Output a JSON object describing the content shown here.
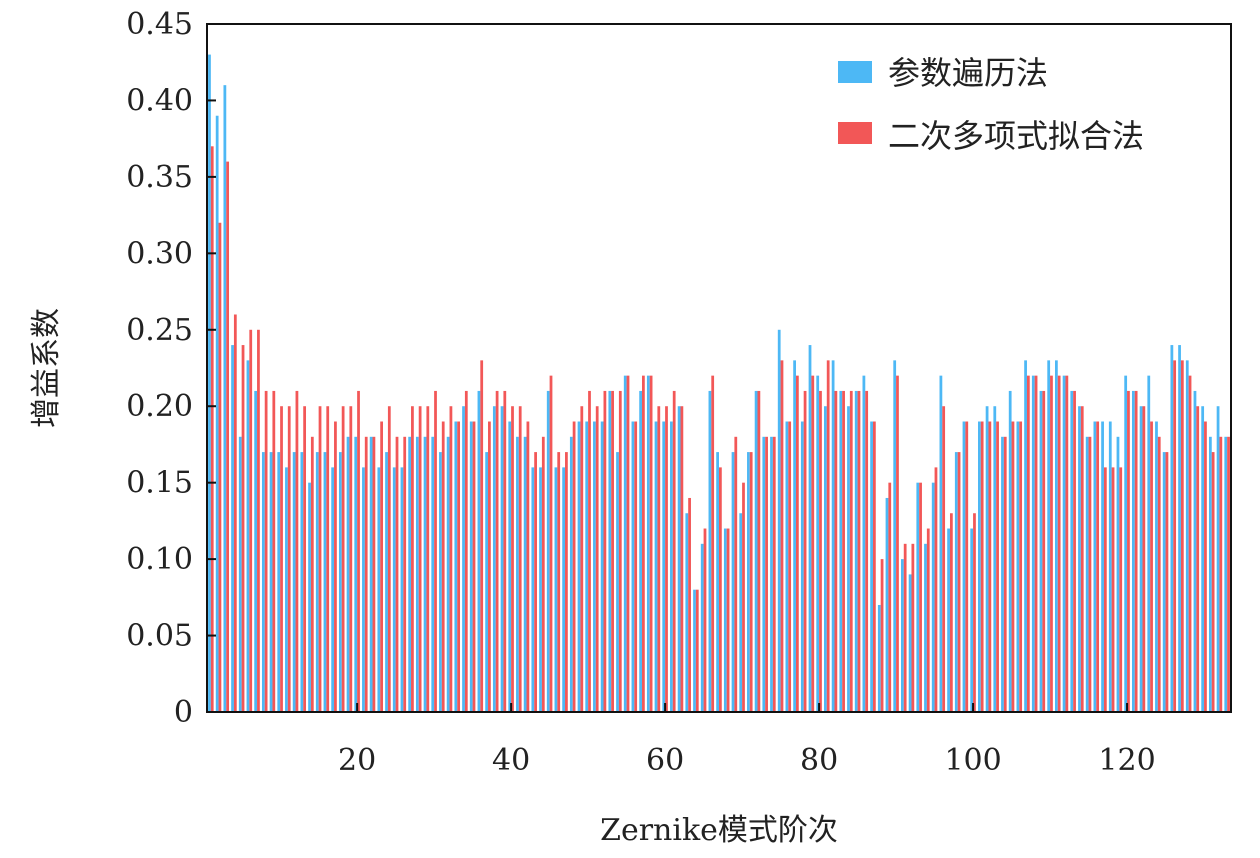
{
  "chart_data": {
    "type": "bar",
    "xlabel": "Zernike模式阶次",
    "ylabel": "增益系数",
    "xlim": [
      0.5,
      133.5
    ],
    "ylim": [
      0,
      0.45
    ],
    "xticks": [
      20,
      40,
      60,
      80,
      100,
      120
    ],
    "xtick_labels": [
      "20",
      "40",
      "60",
      "80",
      "100",
      "120"
    ],
    "yticks": [
      0,
      0.05,
      0.1,
      0.15,
      0.2,
      0.25,
      0.3,
      0.35,
      0.4,
      0.45
    ],
    "ytick_labels": [
      "0",
      "0.05",
      "0.10",
      "0.15",
      "0.20",
      "0.25",
      "0.30",
      "0.35",
      "0.40",
      "0.45"
    ],
    "grid": false,
    "legend_position": "top-right",
    "x": [
      1,
      2,
      3,
      4,
      5,
      6,
      7,
      8,
      9,
      10,
      11,
      12,
      13,
      14,
      15,
      16,
      17,
      18,
      19,
      20,
      21,
      22,
      23,
      24,
      25,
      26,
      27,
      28,
      29,
      30,
      31,
      32,
      33,
      34,
      35,
      36,
      37,
      38,
      39,
      40,
      41,
      42,
      43,
      44,
      45,
      46,
      47,
      48,
      49,
      50,
      51,
      52,
      53,
      54,
      55,
      56,
      57,
      58,
      59,
      60,
      61,
      62,
      63,
      64,
      65,
      66,
      67,
      68,
      69,
      70,
      71,
      72,
      73,
      74,
      75,
      76,
      77,
      78,
      79,
      80,
      81,
      82,
      83,
      84,
      85,
      86,
      87,
      88,
      89,
      90,
      91,
      92,
      93,
      94,
      95,
      96,
      97,
      98,
      99,
      100,
      101,
      102,
      103,
      104,
      105,
      106,
      107,
      108,
      109,
      110,
      111,
      112,
      113,
      114,
      115,
      116,
      117,
      118,
      119,
      120,
      121,
      122,
      123,
      124,
      125,
      126,
      127,
      128,
      129,
      130,
      131,
      132,
      133
    ],
    "series": [
      {
        "name": "参数遍历法",
        "color": "#4db8f5",
        "values": [
          0.43,
          0.39,
          0.41,
          0.24,
          0.18,
          0.23,
          0.21,
          0.17,
          0.17,
          0.17,
          0.16,
          0.17,
          0.17,
          0.15,
          0.17,
          0.17,
          0.16,
          0.17,
          0.18,
          0.18,
          0.16,
          0.18,
          0.16,
          0.17,
          0.16,
          0.16,
          0.18,
          0.18,
          0.18,
          0.18,
          0.17,
          0.18,
          0.19,
          0.2,
          0.19,
          0.21,
          0.17,
          0.2,
          0.2,
          0.19,
          0.18,
          0.18,
          0.16,
          0.16,
          0.21,
          0.16,
          0.16,
          0.18,
          0.19,
          0.19,
          0.19,
          0.19,
          0.21,
          0.17,
          0.22,
          0.19,
          0.21,
          0.22,
          0.19,
          0.19,
          0.19,
          0.2,
          0.13,
          0.08,
          0.11,
          0.21,
          0.17,
          0.12,
          0.17,
          0.13,
          0.17,
          0.21,
          0.18,
          0.18,
          0.25,
          0.19,
          0.23,
          0.19,
          0.24,
          0.22,
          0.2,
          0.23,
          0.21,
          0.2,
          0.21,
          0.22,
          0.19,
          0.07,
          0.14,
          0.23,
          0.1,
          0.09,
          0.15,
          0.11,
          0.15,
          0.22,
          0.12,
          0.17,
          0.19,
          0.12,
          0.19,
          0.2,
          0.2,
          0.18,
          0.21,
          0.19,
          0.23,
          0.22,
          0.21,
          0.23,
          0.23,
          0.22,
          0.21,
          0.2,
          0.18,
          0.19,
          0.19,
          0.19,
          0.18,
          0.22,
          0.21,
          0.2,
          0.22,
          0.19,
          0.17,
          0.24,
          0.24,
          0.23,
          0.21,
          0.2,
          0.18,
          0.2,
          0.18
        ]
      },
      {
        "name": "二次多项式拟合法",
        "color": "#f25757",
        "values": [
          0.37,
          0.32,
          0.36,
          0.26,
          0.24,
          0.25,
          0.25,
          0.21,
          0.21,
          0.2,
          0.2,
          0.21,
          0.2,
          0.18,
          0.2,
          0.2,
          0.19,
          0.2,
          0.2,
          0.21,
          0.18,
          0.18,
          0.19,
          0.2,
          0.18,
          0.18,
          0.2,
          0.2,
          0.2,
          0.21,
          0.19,
          0.2,
          0.19,
          0.21,
          0.19,
          0.23,
          0.19,
          0.21,
          0.21,
          0.2,
          0.2,
          0.19,
          0.17,
          0.18,
          0.22,
          0.17,
          0.17,
          0.19,
          0.2,
          0.21,
          0.2,
          0.21,
          0.21,
          0.21,
          0.22,
          0.19,
          0.22,
          0.22,
          0.2,
          0.2,
          0.21,
          0.2,
          0.14,
          0.08,
          0.12,
          0.22,
          0.16,
          0.12,
          0.18,
          0.15,
          0.17,
          0.21,
          0.18,
          0.18,
          0.23,
          0.19,
          0.22,
          0.21,
          0.22,
          0.21,
          0.23,
          0.21,
          0.21,
          0.21,
          0.21,
          0.21,
          0.19,
          0.1,
          0.15,
          0.22,
          0.11,
          0.11,
          0.15,
          0.12,
          0.16,
          0.2,
          0.13,
          0.17,
          0.19,
          0.13,
          0.19,
          0.19,
          0.19,
          0.18,
          0.19,
          0.19,
          0.22,
          0.22,
          0.21,
          0.22,
          0.22,
          0.22,
          0.21,
          0.2,
          0.18,
          0.19,
          0.16,
          0.16,
          0.16,
          0.21,
          0.21,
          0.2,
          0.19,
          0.18,
          0.17,
          0.23,
          0.23,
          0.22,
          0.2,
          0.19,
          0.17,
          0.18,
          0.18
        ]
      }
    ]
  }
}
